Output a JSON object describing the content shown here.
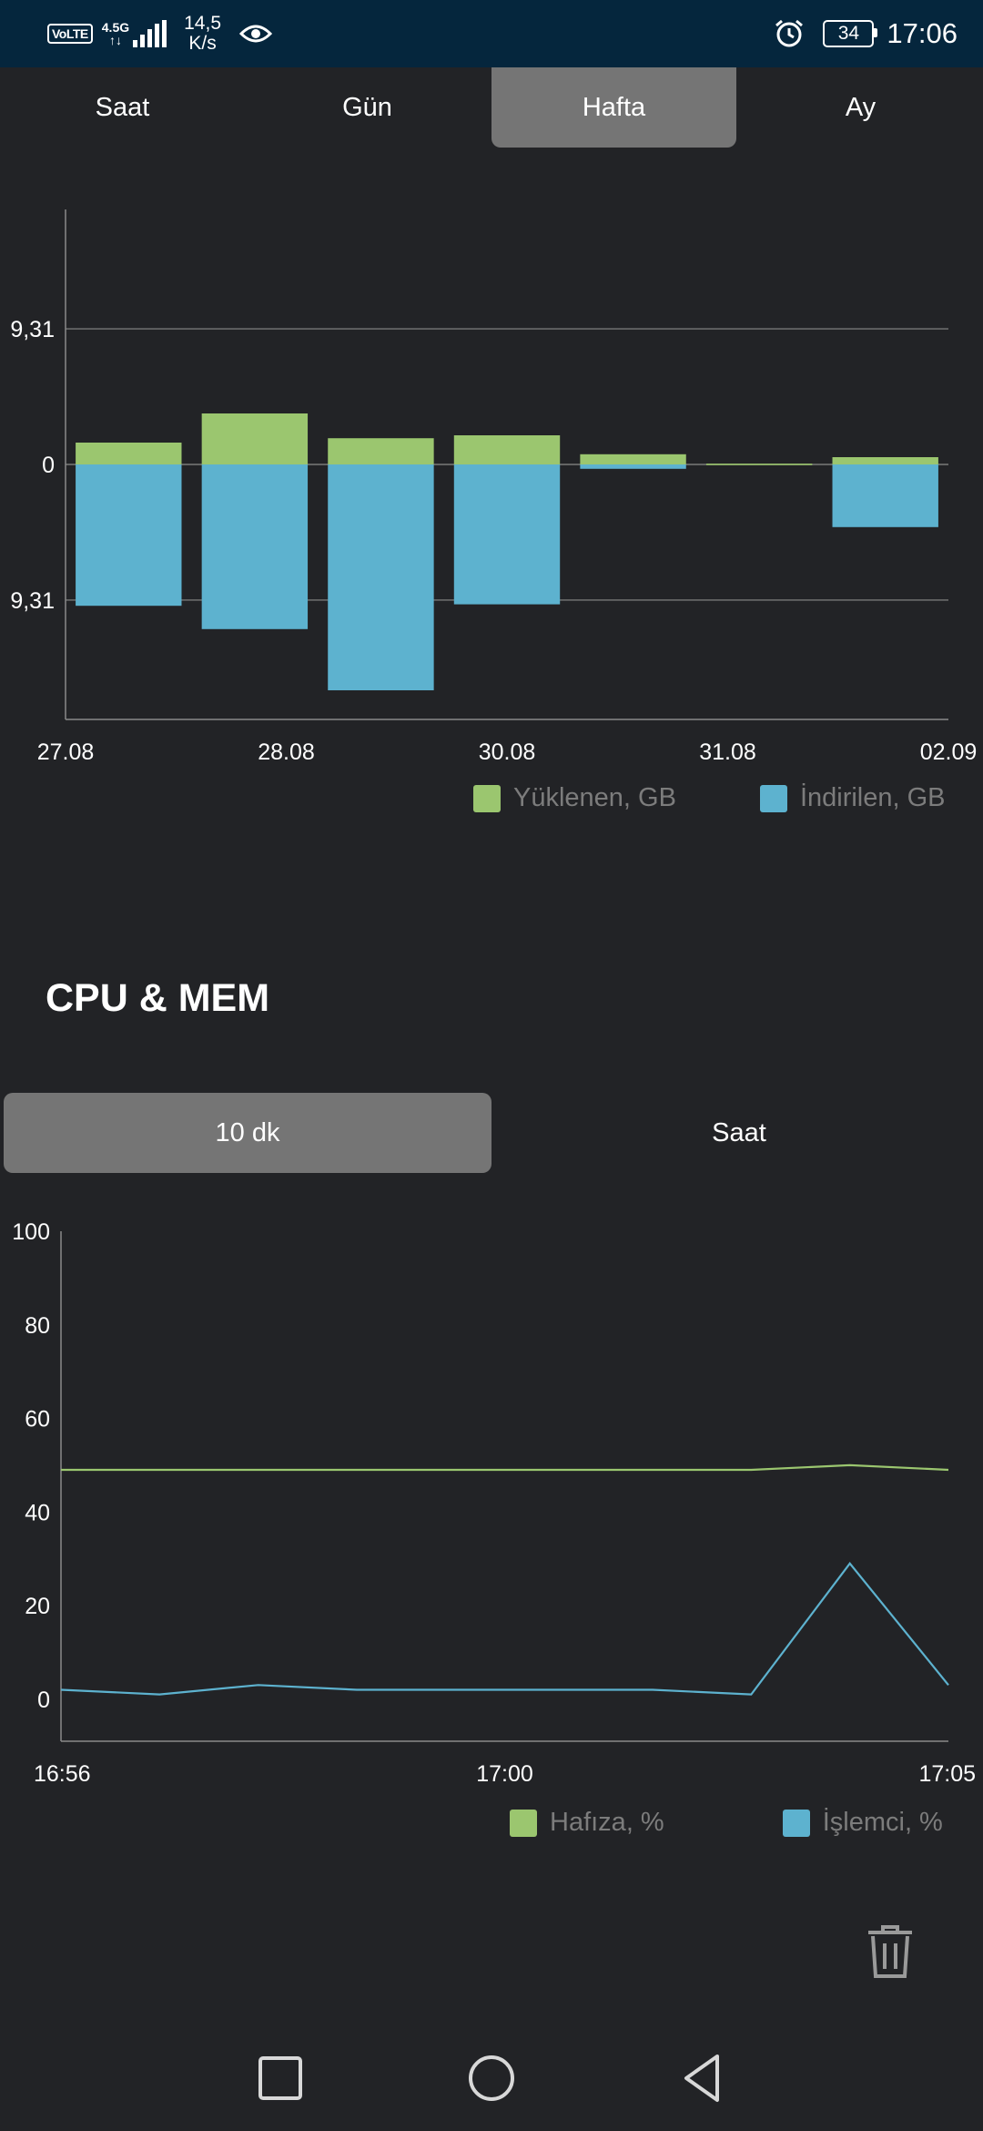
{
  "status_bar": {
    "network_badge": "VoLTE",
    "network_gen": "4.5G",
    "speed_value": "14,5",
    "speed_unit": "K/s",
    "battery": "34",
    "time": "17:06",
    "icons": [
      "eye-icon",
      "alarm-icon",
      "battery-icon",
      "signal-icon"
    ]
  },
  "traffic_tabs": [
    {
      "label": "Saat",
      "active": false
    },
    {
      "label": "Gün",
      "active": false
    },
    {
      "label": "Hafta",
      "active": true
    },
    {
      "label": "Ay",
      "active": false
    }
  ],
  "section_title": "CPU & MEM",
  "cpu_tabs": [
    {
      "label": "10 dk",
      "active": true
    },
    {
      "label": "Saat",
      "active": false
    }
  ],
  "colors": {
    "upload": "#9bc66f",
    "download": "#5db2cf",
    "background": "#222326",
    "tab_active": "#757575",
    "status_bar": "#05263d"
  },
  "chart_data": [
    {
      "type": "bar",
      "x_tick_labels": [
        "27.08",
        "28.08",
        "30.08",
        "31.08",
        "02.09"
      ],
      "y_tick_labels": [
        "9,31",
        "0",
        "9,31"
      ],
      "ylim": [
        -17.5,
        17.5
      ],
      "series": [
        {
          "name": "Yüklenen, GB",
          "color": "#9bc66f",
          "values": [
            1.5,
            3.5,
            1.8,
            2.0,
            0.7,
            0.05,
            0.5
          ]
        },
        {
          "name": "İndirilen, GB",
          "color": "#5db2cf",
          "values": [
            -9.7,
            -11.3,
            -15.5,
            -9.6,
            -0.3,
            0,
            -4.3
          ]
        }
      ],
      "legend_position": "bottom-right",
      "grid": true
    },
    {
      "type": "line",
      "x_tick_labels": [
        "16:56",
        "17:00",
        "17:05"
      ],
      "y_tick_labels": [
        "100",
        "80",
        "60",
        "40",
        "20",
        "0"
      ],
      "ylim": [
        -9,
        100
      ],
      "series": [
        {
          "name": "Hafıza, %",
          "color": "#9bc66f",
          "values": [
            49,
            49,
            49,
            49,
            49,
            49,
            49,
            49,
            50,
            49
          ]
        },
        {
          "name": "İşlemci, %",
          "color": "#5db2cf",
          "values": [
            2,
            1,
            3,
            2,
            2,
            2,
            2,
            1,
            29,
            3
          ]
        }
      ],
      "legend_position": "bottom-right",
      "grid": false
    }
  ],
  "trash_icon": "trash-icon",
  "nav": [
    "square-icon",
    "circle-icon",
    "back-triangle-icon"
  ]
}
